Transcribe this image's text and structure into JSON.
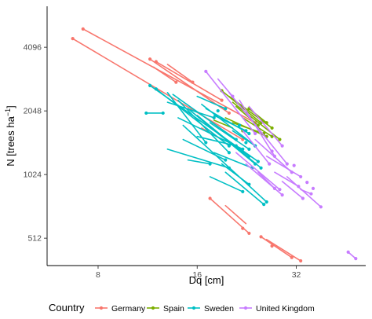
{
  "chart_data": {
    "type": "scatter",
    "xlabel": "Dq [cm]",
    "ylabel_parts": {
      "base": "N [trees ha",
      "sup": "−1",
      "end": "]"
    },
    "x_scale": "log2",
    "y_scale": "log2",
    "xlim": [
      5.6,
      52
    ],
    "ylim": [
      380,
      6400
    ],
    "x_ticks": [
      8,
      16,
      32
    ],
    "x_tick_labels": [
      "8",
      "16",
      "32"
    ],
    "y_ticks": [
      512,
      1024,
      2048,
      4096
    ],
    "y_tick_labels": [
      "512",
      "1024",
      "2048",
      "4096"
    ],
    "grid": false,
    "legend_title": "Country",
    "legend_position": "bottom",
    "series": [
      {
        "name": "Germany",
        "color": "#F8766D",
        "segments": [
          [
            [
              6.7,
              4500
            ],
            [
              22.0,
              1500
            ]
          ],
          [
            [
              7.2,
              5000
            ],
            [
              24.0,
              1800
            ]
          ],
          [
            [
              11.5,
              3600
            ],
            [
              20.0,
              2000
            ]
          ],
          [
            [
              12.0,
              3500
            ],
            [
              19.0,
              2300
            ]
          ],
          [
            [
              11.8,
              3300
            ],
            [
              13.8,
              2800
            ]
          ],
          [
            [
              13.0,
              3400
            ],
            [
              15.5,
              2800
            ]
          ],
          [
            [
              16.5,
              1700
            ],
            [
              19.0,
              1500
            ]
          ],
          [
            [
              17.5,
              790
            ],
            [
              23.0,
              540
            ]
          ],
          [
            [
              19.5,
              730
            ],
            [
              22.5,
              600
            ]
          ],
          [
            [
              25.0,
              520
            ],
            [
              31.0,
              415
            ]
          ],
          [
            [
              26.0,
              505
            ],
            [
              33.0,
              400
            ]
          ]
        ],
        "points": [
          [
            6.7,
            4500
          ],
          [
            7.2,
            5000
          ],
          [
            22.0,
            1500
          ],
          [
            24.0,
            1800
          ],
          [
            11.5,
            3600
          ],
          [
            20.0,
            2000
          ],
          [
            12.0,
            3500
          ],
          [
            19.0,
            2300
          ],
          [
            13.8,
            2800
          ],
          [
            15.5,
            2800
          ],
          [
            17.5,
            790
          ],
          [
            23.0,
            540
          ],
          [
            22.0,
            570
          ],
          [
            25.0,
            520
          ],
          [
            31.0,
            415
          ],
          [
            33.0,
            400
          ],
          [
            27.0,
            470
          ]
        ]
      },
      {
        "name": "Spain",
        "color": "#7CAE00",
        "segments": [
          [
            [
              19.0,
              2550
            ],
            [
              25.0,
              1800
            ]
          ],
          [
            [
              20.0,
              2400
            ],
            [
              27.0,
              1700
            ]
          ],
          [
            [
              20.5,
              2250
            ],
            [
              28.5,
              1500
            ]
          ],
          [
            [
              21.0,
              2150
            ],
            [
              24.5,
              1750
            ]
          ],
          [
            [
              19.5,
              1900
            ],
            [
              26.0,
              1550
            ]
          ],
          [
            [
              20.5,
              1800
            ],
            [
              25.5,
              1600
            ]
          ],
          [
            [
              22.0,
              1900
            ],
            [
              27.0,
              1550
            ]
          ],
          [
            [
              18.0,
              1850
            ],
            [
              20.5,
              1700
            ]
          ],
          [
            [
              23.0,
              2100
            ],
            [
              26.0,
              1800
            ]
          ]
        ],
        "points": [
          [
            19.0,
            2550
          ],
          [
            25.0,
            1800
          ],
          [
            27.0,
            1700
          ],
          [
            28.5,
            1500
          ],
          [
            24.5,
            1750
          ],
          [
            26.0,
            1550
          ],
          [
            25.5,
            1600
          ],
          [
            27.0,
            1550
          ],
          [
            23.0,
            2100
          ],
          [
            26.0,
            1800
          ],
          [
            22.0,
            1650
          ]
        ]
      },
      {
        "name": "Sweden",
        "color": "#00BFC4",
        "segments": [
          [
            [
              11.5,
              2700
            ],
            [
              24.5,
              1180
            ]
          ],
          [
            [
              12.0,
              2600
            ],
            [
              20.0,
              1400
            ]
          ],
          [
            [
              13.0,
              2500
            ],
            [
              17.0,
              1450
            ]
          ],
          [
            [
              11.2,
              2000
            ],
            [
              12.6,
              2000
            ]
          ],
          [
            [
              13.0,
              2250
            ],
            [
              18.0,
              1900
            ]
          ],
          [
            [
              13.5,
              2450
            ],
            [
              21.0,
              1500
            ]
          ],
          [
            [
              14.0,
              2300
            ],
            [
              20.0,
              1300
            ]
          ],
          [
            [
              14.0,
              1900
            ],
            [
              22.0,
              1350
            ]
          ],
          [
            [
              14.5,
              1750
            ],
            [
              26.0,
              760
            ]
          ],
          [
            [
              15.0,
              2100
            ],
            [
              24.0,
              1150
            ]
          ],
          [
            [
              16.0,
              1950
            ],
            [
              25.0,
              1100
            ]
          ],
          [
            [
              16.5,
              2200
            ],
            [
              24.0,
              1400
            ]
          ],
          [
            [
              17.0,
              2100
            ],
            [
              23.0,
              1600
            ]
          ],
          [
            [
              17.5,
              1800
            ],
            [
              23.0,
              1350
            ]
          ],
          [
            [
              18.0,
              1950
            ],
            [
              22.5,
              1650
            ]
          ],
          [
            [
              18.5,
              1600
            ],
            [
              23.0,
              1250
            ]
          ],
          [
            [
              18.0,
              1300
            ],
            [
              23.5,
              1100
            ]
          ],
          [
            [
              14.5,
              1500
            ],
            [
              19.5,
              1200
            ]
          ],
          [
            [
              13.0,
              1350
            ],
            [
              20.0,
              1100
            ]
          ],
          [
            [
              16.0,
              1550
            ],
            [
              21.0,
              1400
            ]
          ],
          [
            [
              17.5,
              1000
            ],
            [
              22.0,
              850
            ]
          ],
          [
            [
              19.5,
              1050
            ],
            [
              25.5,
              740
            ]
          ],
          [
            [
              19.0,
              1150
            ],
            [
              23.0,
              920
            ]
          ],
          [
            [
              15.0,
              1200
            ],
            [
              17.5,
              1150
            ]
          ],
          [
            [
              16.0,
              2400
            ],
            [
              19.5,
              2100
            ]
          ],
          [
            [
              20.5,
              1650
            ],
            [
              24.0,
              1400
            ]
          ]
        ],
        "points": [
          [
            11.5,
            2700
          ],
          [
            24.5,
            1180
          ],
          [
            12.0,
            2600
          ],
          [
            20.0,
            1400
          ],
          [
            17.0,
            1450
          ],
          [
            11.2,
            2000
          ],
          [
            12.6,
            2000
          ],
          [
            18.0,
            1900
          ],
          [
            21.0,
            1500
          ],
          [
            20.0,
            1300
          ],
          [
            22.0,
            1350
          ],
          [
            26.0,
            760
          ],
          [
            24.0,
            1150
          ],
          [
            25.0,
            1100
          ],
          [
            24.0,
            1400
          ],
          [
            23.0,
            1600
          ],
          [
            23.0,
            1350
          ],
          [
            22.5,
            1650
          ],
          [
            23.0,
            1250
          ],
          [
            23.5,
            1100
          ],
          [
            19.5,
            1200
          ],
          [
            20.0,
            1100
          ],
          [
            21.0,
            1400
          ],
          [
            22.0,
            850
          ],
          [
            25.5,
            740
          ],
          [
            23.0,
            920
          ],
          [
            17.5,
            1150
          ],
          [
            19.5,
            2100
          ],
          [
            24.0,
            1400
          ],
          [
            18.5,
            2050
          ],
          [
            21.5,
            1750
          ],
          [
            22.5,
            1450
          ]
        ]
      },
      {
        "name": "United Kingdom",
        "color": "#C77CFF",
        "segments": [
          [
            [
              17.0,
              3150
            ],
            [
              24.0,
              1600
            ]
          ],
          [
            [
              18.5,
              2900
            ],
            [
              20.5,
              2400
            ]
          ],
          [
            [
              20.0,
              2500
            ],
            [
              30.0,
              1150
            ]
          ],
          [
            [
              21.5,
              2300
            ],
            [
              27.5,
              1250
            ]
          ],
          [
            [
              23.0,
              2150
            ],
            [
              29.0,
              1400
            ]
          ],
          [
            [
              22.0,
              1650
            ],
            [
              26.5,
              1150
            ]
          ],
          [
            [
              24.0,
              1500
            ],
            [
              31.0,
              1050
            ]
          ],
          [
            [
              26.0,
              1250
            ],
            [
              33.0,
              1000
            ]
          ],
          [
            [
              21.0,
              1300
            ],
            [
              28.5,
              870
            ]
          ],
          [
            [
              24.5,
              1050
            ],
            [
              27.5,
              880
            ]
          ],
          [
            [
              22.5,
              1150
            ],
            [
              29.0,
              820
            ]
          ],
          [
            [
              27.5,
              1050
            ],
            [
              32.5,
              900
            ]
          ],
          [
            [
              29.0,
              950
            ],
            [
              33.5,
              790
            ]
          ],
          [
            [
              30.0,
              1000
            ],
            [
              38.0,
              720
            ]
          ],
          [
            [
              33.0,
              870
            ],
            [
              35.5,
              830
            ]
          ],
          [
            [
              46.0,
              440
            ],
            [
              48.5,
              410
            ]
          ]
        ],
        "points": [
          [
            17.0,
            3150
          ],
          [
            24.0,
            1600
          ],
          [
            20.5,
            2400
          ],
          [
            30.0,
            1150
          ],
          [
            27.5,
            1250
          ],
          [
            29.0,
            1400
          ],
          [
            26.5,
            1150
          ],
          [
            31.0,
            1050
          ],
          [
            33.0,
            1000
          ],
          [
            28.5,
            870
          ],
          [
            27.5,
            880
          ],
          [
            29.0,
            820
          ],
          [
            32.5,
            900
          ],
          [
            33.5,
            790
          ],
          [
            38.0,
            720
          ],
          [
            35.5,
            830
          ],
          [
            36.0,
            880
          ],
          [
            34.5,
            940
          ],
          [
            46.0,
            440
          ],
          [
            48.5,
            410
          ],
          [
            31.5,
            1130
          ],
          [
            27.0,
            1320
          ]
        ]
      }
    ]
  }
}
